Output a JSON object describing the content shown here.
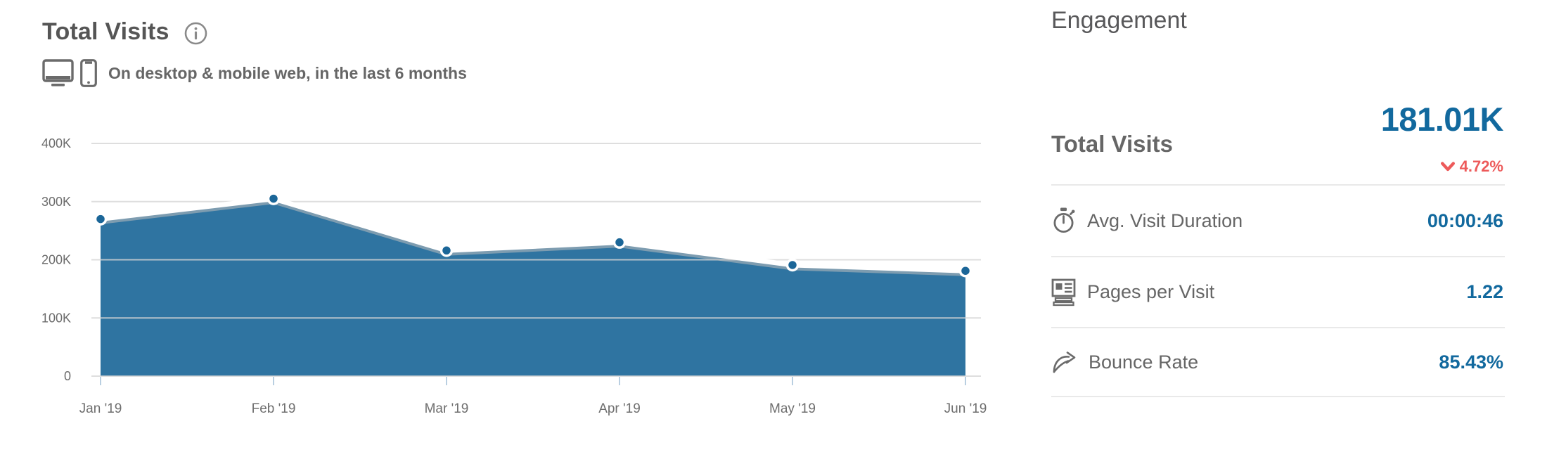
{
  "colors": {
    "area_fill": "#2F74A1",
    "point": "#1B6698",
    "trend_line": "#FFFFFF",
    "value_text": "#12699E",
    "negative_change": "#ED5A5A",
    "heading_text": "#58585A",
    "label_text": "#666666",
    "divider": "#E9E9E9"
  },
  "chart_panel": {
    "title": "Total Visits",
    "subtitle": "On desktop & mobile web, in the last 6 months"
  },
  "chart_data": {
    "type": "area",
    "title": "Total Visits",
    "x": [
      "Jan '19",
      "Feb '19",
      "Mar '19",
      "Apr '19",
      "May '19",
      "Jun '19"
    ],
    "series": [
      {
        "name": "Total Visits",
        "values": [
          270000,
          305000,
          216000,
          230000,
          191000,
          181010
        ]
      }
    ],
    "xlabel": "",
    "ylabel": "",
    "ylim": [
      0,
      400000
    ],
    "y_tick_step": 100000,
    "y_tick_labels": [
      "0",
      "100K",
      "200K",
      "300K",
      "400K"
    ],
    "grid": true,
    "legend": false
  },
  "engagement": {
    "title": "Engagement",
    "total": {
      "label": "Total Visits",
      "value": "181.01K",
      "change": "4.72%",
      "change_direction": "down"
    },
    "metrics": [
      {
        "icon": "stopwatch-icon",
        "label": "Avg. Visit Duration",
        "value": "00:00:46"
      },
      {
        "icon": "pages-per-visit-icon",
        "label": "Pages per Visit",
        "value": "1.22"
      },
      {
        "icon": "bounce-rate-icon",
        "label": "Bounce Rate",
        "value": "85.43%"
      }
    ]
  }
}
